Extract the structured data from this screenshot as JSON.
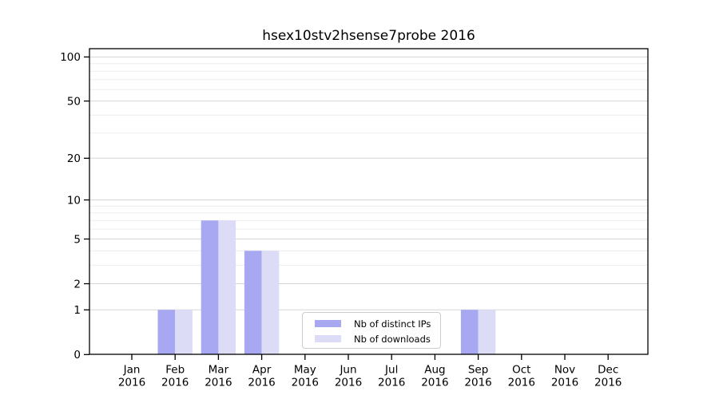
{
  "chart_data": {
    "type": "bar",
    "title": "hsex10stv2hsense7probe 2016",
    "months": [
      "Jan",
      "Feb",
      "Mar",
      "Apr",
      "May",
      "Jun",
      "Jul",
      "Aug",
      "Sep",
      "Oct",
      "Nov",
      "Dec"
    ],
    "year": "2016",
    "categories": [
      "Jan 2016",
      "Feb 2016",
      "Mar 2016",
      "Apr 2016",
      "May 2016",
      "Jun 2016",
      "Jul 2016",
      "Aug 2016",
      "Sep 2016",
      "Oct 2016",
      "Nov 2016",
      "Dec 2016"
    ],
    "series": [
      {
        "name": "Nb of distinct IPs",
        "color": "#a8a8f2",
        "values": [
          0,
          1,
          7,
          4,
          0,
          0,
          0,
          0,
          1,
          0,
          0,
          0
        ]
      },
      {
        "name": "Nb of downloads",
        "color": "#dcdcf7",
        "values": [
          0,
          1,
          7,
          4,
          0,
          0,
          0,
          0,
          1,
          0,
          0,
          0
        ]
      }
    ],
    "yticks": [
      0,
      1,
      2,
      5,
      10,
      20,
      50,
      100
    ],
    "minor_gridlines": [
      3,
      4,
      6,
      7,
      8,
      9,
      30,
      40,
      60,
      70,
      80,
      90
    ],
    "scale": "log1p",
    "ylim": [
      0,
      114
    ],
    "grid": true,
    "legend_position": "lower center"
  },
  "colors": {
    "background": "#ffffff",
    "axis": "#000000",
    "text": "#000000",
    "grid_major": "#d5d5d5",
    "grid_minor": "#ebebeb",
    "legend_border": "#cccccc"
  }
}
